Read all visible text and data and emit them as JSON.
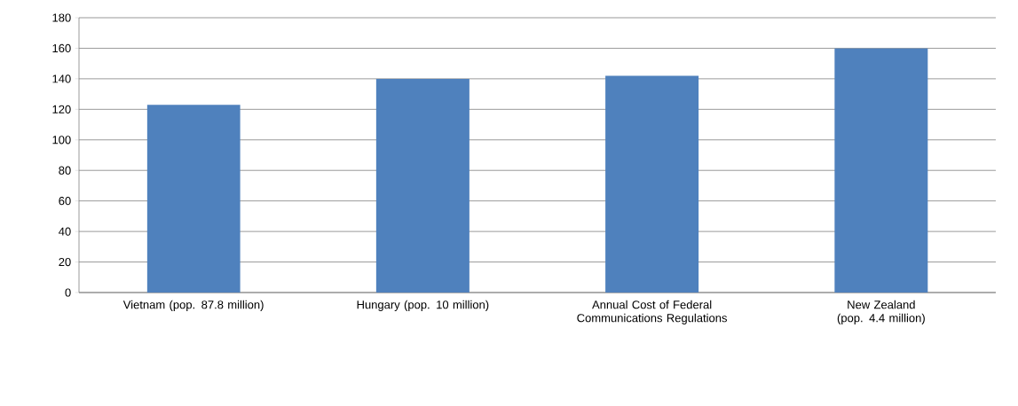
{
  "chart_data": {
    "type": "bar",
    "categories": [
      "Vietnam (pop. 87.8 million)",
      "Hungary (pop. 10 million)",
      "Annual Cost of Federal Communications Regulations",
      "New Zealand (pop. 4.4 million)"
    ],
    "values": [
      123,
      140,
      142,
      160
    ],
    "color": "#4f81bd",
    "ylim": [
      0,
      180
    ],
    "yticks": [
      0,
      20,
      40,
      60,
      80,
      100,
      120,
      140,
      160,
      180
    ],
    "grid": "y"
  }
}
